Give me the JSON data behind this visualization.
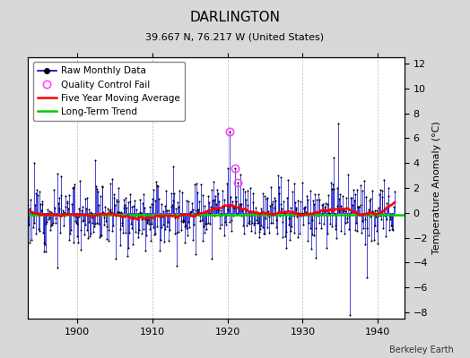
{
  "title": "DARLINGTON",
  "subtitle": "39.667 N, 76.217 W (United States)",
  "ylabel": "Temperature Anomaly (°C)",
  "attribution": "Berkeley Earth",
  "xlim": [
    1893.5,
    1943.5
  ],
  "ylim": [
    -8.5,
    12.5
  ],
  "yticks": [
    -8,
    -6,
    -4,
    -2,
    0,
    2,
    4,
    6,
    8,
    10,
    12
  ],
  "xticks": [
    1900,
    1910,
    1920,
    1930,
    1940
  ],
  "background_color": "#d8d8d8",
  "plot_bg_color": "#ffffff",
  "grid_color": "#bbbbbb",
  "raw_line_color": "#0000cc",
  "raw_marker_color": "#000000",
  "moving_avg_color": "#ff0000",
  "trend_color": "#00cc00",
  "qc_fail_color": "#ff44ff",
  "seed": 12,
  "n_points": 597,
  "start_year": 1893.5,
  "end_year": 1942.25,
  "trend_y": -0.18,
  "qc_years": [
    1920.25,
    1921.0,
    1921.4
  ],
  "qc_vals": [
    6.5,
    3.55,
    2.45
  ],
  "title_fontsize": 11,
  "subtitle_fontsize": 8,
  "ylabel_fontsize": 8,
  "tick_fontsize": 8,
  "legend_fontsize": 7.5,
  "attribution_fontsize": 7
}
